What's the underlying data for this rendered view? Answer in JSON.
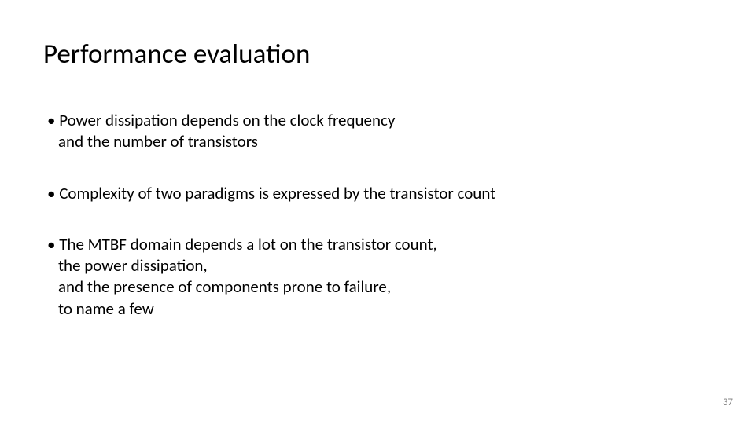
{
  "slide": {
    "title": "Performance evaluation",
    "bullets": [
      "Power dissipation depends on the clock frequency\nand the number of transistors",
      "Complexity of two paradigms is expressed by the transistor count",
      "The MTBF domain depends a lot on the transistor count,\nthe power dissipation,\nand the presence of components prone to failure,\nto name a few"
    ],
    "page_number": "37"
  },
  "style": {
    "background_color": "#ffffff",
    "title_fontsize": 35,
    "title_color": "#000000",
    "body_fontsize": 21,
    "body_color": "#000000",
    "page_num_color": "#8a8a8a",
    "page_num_fontsize": 13
  }
}
